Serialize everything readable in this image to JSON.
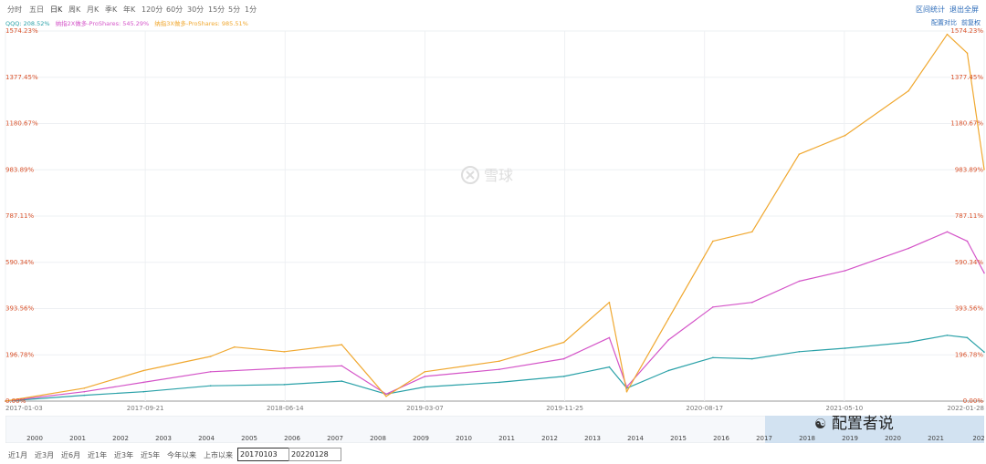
{
  "periods": [
    "分时",
    "五日",
    "日K",
    "周K",
    "月K",
    "季K",
    "年K",
    "120分",
    "60分",
    "30分",
    "15分",
    "5分",
    "1分"
  ],
  "toolbar": {
    "interval_stats": "区间统计",
    "exit_fullscreen": "退出全屏"
  },
  "options": {
    "compare": "配置对比",
    "pre_adjust": "前复权"
  },
  "legend": {
    "qqq": "QQQ: 208.52%",
    "x2": "纳指2X做多-ProShares: 545.29%",
    "x3": "纳指3X做多-ProShares: 985.51%"
  },
  "watermark_logo": "雪球",
  "watermark_text": "配置者说",
  "colors": {
    "qqq": "#2aa1a8",
    "x2": "#d454c8",
    "x3": "#f0a830",
    "axis_label": "#d9532c",
    "link": "#2a6ab8"
  },
  "chart_data": {
    "type": "line",
    "title": "",
    "y_labels": [
      "1574.23%",
      "1377.45%",
      "1180.67%",
      "983.89%",
      "787.11%",
      "590.34%",
      "393.56%",
      "196.78%",
      "0.00%"
    ],
    "ylim": [
      0,
      1574.23
    ],
    "x_labels": [
      "2017-01-03",
      "2017-09-21",
      "2018-06-14",
      "2019-03-07",
      "2019-11-25",
      "2020-08-17",
      "2021-05-10",
      "2022-01-28"
    ],
    "x_date_range": [
      "2017-01-03",
      "2022-01-28"
    ],
    "series": [
      {
        "name": "QQQ: 208.52%",
        "color": "#2aa1a8",
        "points": [
          [
            "2017-01-03",
            0
          ],
          [
            "2017-06-01",
            25
          ],
          [
            "2017-09-21",
            40
          ],
          [
            "2018-01-26",
            65
          ],
          [
            "2018-06-14",
            70
          ],
          [
            "2018-10-01",
            85
          ],
          [
            "2018-12-24",
            30
          ],
          [
            "2019-03-07",
            60
          ],
          [
            "2019-07-26",
            80
          ],
          [
            "2019-11-25",
            105
          ],
          [
            "2020-02-19",
            145
          ],
          [
            "2020-03-23",
            55
          ],
          [
            "2020-06-10",
            130
          ],
          [
            "2020-09-02",
            185
          ],
          [
            "2020-11-15",
            180
          ],
          [
            "2021-02-12",
            210
          ],
          [
            "2021-05-10",
            225
          ],
          [
            "2021-09-07",
            250
          ],
          [
            "2021-11-19",
            280
          ],
          [
            "2021-12-27",
            270
          ],
          [
            "2022-01-28",
            208.52
          ]
        ]
      },
      {
        "name": "纳指2X做多-ProShares: 545.29%",
        "color": "#d454c8",
        "points": [
          [
            "2017-01-03",
            0
          ],
          [
            "2017-06-01",
            40
          ],
          [
            "2017-09-21",
            80
          ],
          [
            "2018-01-26",
            125
          ],
          [
            "2018-06-14",
            140
          ],
          [
            "2018-10-01",
            150
          ],
          [
            "2018-12-24",
            30
          ],
          [
            "2019-03-07",
            105
          ],
          [
            "2019-07-26",
            135
          ],
          [
            "2019-11-25",
            180
          ],
          [
            "2020-02-19",
            270
          ],
          [
            "2020-03-23",
            60
          ],
          [
            "2020-06-10",
            260
          ],
          [
            "2020-09-02",
            400
          ],
          [
            "2020-11-15",
            420
          ],
          [
            "2021-02-12",
            510
          ],
          [
            "2021-05-10",
            555
          ],
          [
            "2021-09-07",
            650
          ],
          [
            "2021-11-19",
            720
          ],
          [
            "2021-12-27",
            680
          ],
          [
            "2022-01-28",
            545.29
          ]
        ]
      },
      {
        "name": "纳指3X做多-ProShares: 985.51%",
        "color": "#f0a830",
        "points": [
          [
            "2017-01-03",
            0
          ],
          [
            "2017-06-01",
            55
          ],
          [
            "2017-09-21",
            130
          ],
          [
            "2018-01-26",
            190
          ],
          [
            "2018-03-12",
            230
          ],
          [
            "2018-06-14",
            210
          ],
          [
            "2018-10-01",
            240
          ],
          [
            "2018-12-24",
            20
          ],
          [
            "2019-03-07",
            125
          ],
          [
            "2019-07-26",
            170
          ],
          [
            "2019-11-25",
            250
          ],
          [
            "2020-02-19",
            420
          ],
          [
            "2020-03-23",
            40
          ],
          [
            "2020-06-10",
            350
          ],
          [
            "2020-09-02",
            680
          ],
          [
            "2020-11-15",
            720
          ],
          [
            "2021-02-12",
            1050
          ],
          [
            "2021-05-10",
            1130
          ],
          [
            "2021-09-07",
            1320
          ],
          [
            "2021-11-19",
            1560
          ],
          [
            "2021-12-27",
            1480
          ],
          [
            "2022-01-28",
            985.51
          ]
        ]
      }
    ],
    "legend_position": "top-left",
    "grid": true
  },
  "navigator": {
    "years": [
      "2000",
      "2001",
      "2002",
      "2003",
      "2004",
      "2005",
      "2006",
      "2007",
      "2008",
      "2009",
      "2010",
      "2011",
      "2012",
      "2013",
      "2014",
      "2015",
      "2016",
      "2017",
      "2018",
      "2019",
      "2020",
      "2021",
      "202"
    ],
    "selected_range": [
      "2017",
      "2022"
    ]
  },
  "ranges": [
    "近1月",
    "近3月",
    "近6月",
    "近1年",
    "近3年",
    "近5年",
    "今年以来",
    "上市以来"
  ],
  "date_from": "20170103",
  "date_to": "20220128"
}
